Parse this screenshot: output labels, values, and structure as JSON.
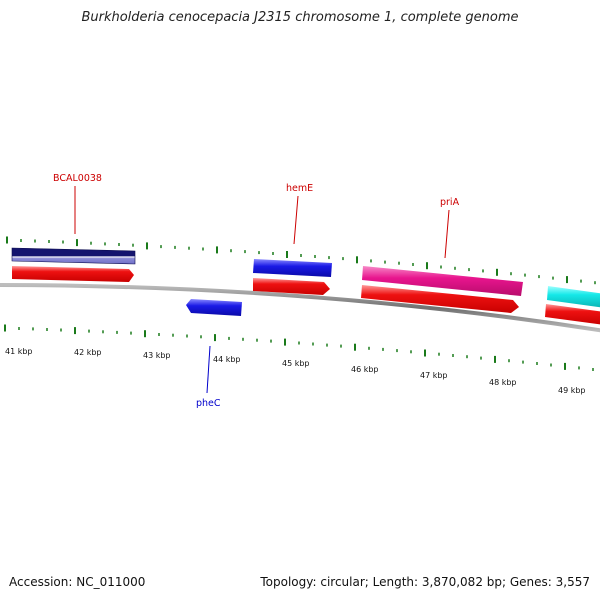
{
  "header": {
    "title": "Burkholderia cenocepacia J2315 chromosome 1, complete genome"
  },
  "footer": {
    "accession": "Accession: NC_011000",
    "summary": "Topology: circular; Length: 3,870,082 bp; Genes: 3,557"
  },
  "map": {
    "kbp_labels": [
      "41 kbp",
      "42 kbp",
      "43 kbp",
      "44 kbp",
      "45 kbp",
      "46 kbp",
      "47 kbp",
      "48 kbp",
      "49 kbp"
    ],
    "gene_labels": {
      "bcal0038": "BCAL0038",
      "heme": "hemE",
      "pria": "priA",
      "phec": "pheC"
    },
    "colors": {
      "backbone": "#8a8a8a",
      "ticks": "#1a7a1a",
      "cds_forward": "#ee1111",
      "cds_reverse": "#2222ee",
      "gene_dark_navy": "#14146e",
      "gene_blue": "#1a1ae6",
      "gene_magenta": "#e8158e",
      "gene_cyan": "#15e8e8",
      "label_forward": "#cc0000",
      "label_reverse": "#0000cc"
    }
  }
}
